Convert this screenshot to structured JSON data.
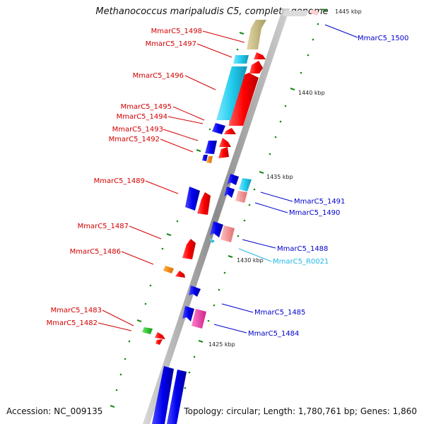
{
  "title": "Methanococcus maripaludis C5, complete genome",
  "accession": "Accession: NC_009135",
  "topology": "Topology: circular; Length: 1,780,761 bp; Genes: 1,860",
  "scale_labels": [
    "1425 kbp",
    "1430 kbp",
    "1435 kbp",
    "1440 kbp",
    "1445 kbp"
  ],
  "genes": [
    {
      "label": "MmarC5_1498",
      "color": "#d40000"
    },
    {
      "label": "MmarC5_1497",
      "color": "#d40000"
    },
    {
      "label": "MmarC5_1496",
      "color": "#d40000"
    },
    {
      "label": "MmarC5_1495",
      "color": "#d40000"
    },
    {
      "label": "MmarC5_1494",
      "color": "#d40000"
    },
    {
      "label": "MmarC5_1493",
      "color": "#d40000"
    },
    {
      "label": "MmarC5_1492",
      "color": "#d40000"
    },
    {
      "label": "MmarC5_1489",
      "color": "#d40000"
    },
    {
      "label": "MmarC5_1487",
      "color": "#d40000"
    },
    {
      "label": "MmarC5_1486",
      "color": "#d40000"
    },
    {
      "label": "MmarC5_1483",
      "color": "#d40000"
    },
    {
      "label": "MmarC5_1482",
      "color": "#d40000"
    },
    {
      "label": "MmarC5_1500",
      "color": "#0000cc"
    },
    {
      "label": "MmarC5_1491",
      "color": "#0000cc"
    },
    {
      "label": "MmarC5_1490",
      "color": "#0000cc"
    },
    {
      "label": "MmarC5_1488",
      "color": "#0000cc"
    },
    {
      "label": "MmarC5_R0021",
      "color": "#22b8e6"
    },
    {
      "label": "MmarC5_1485",
      "color": "#0000cc"
    },
    {
      "label": "MmarC5_1484",
      "color": "#0000cc"
    }
  ],
  "colors": {
    "backbone": "#a0a0a0",
    "plus_strand_feature": "#ff0000",
    "minus_strand_feature": "#0000ee",
    "rna_feature": "#22ccee",
    "tick": "#1a8a1a",
    "other_features": [
      "#c8bd86",
      "#f29696",
      "#ff8a00",
      "#22cc22",
      "#ee44aa"
    ]
  }
}
